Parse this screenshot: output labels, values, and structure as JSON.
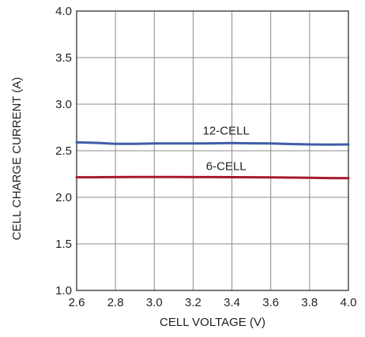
{
  "chart_data": {
    "type": "line",
    "xlabel": "CELL VOLTAGE (V)",
    "ylabel": "CELL CHARGE CURRENT (A)",
    "xlim": [
      2.6,
      4.0
    ],
    "ylim": [
      1.0,
      4.0
    ],
    "xticks": [
      "2.6",
      "2.8",
      "3.0",
      "3.2",
      "3.4",
      "3.6",
      "3.8",
      "4.0"
    ],
    "yticks": [
      "1.0",
      "1.5",
      "2.0",
      "2.5",
      "3.0",
      "3.5",
      "4.0"
    ],
    "grid": true,
    "legend": "none",
    "series": [
      {
        "name": "12-CELL",
        "color": "#3f5da8",
        "x": [
          2.6,
          2.7,
          2.8,
          2.9,
          3.0,
          3.1,
          3.2,
          3.3,
          3.4,
          3.5,
          3.6,
          3.7,
          3.8,
          3.9,
          4.0
        ],
        "y": [
          2.59,
          2.585,
          2.575,
          2.575,
          2.578,
          2.578,
          2.578,
          2.58,
          2.582,
          2.58,
          2.578,
          2.572,
          2.568,
          2.566,
          2.568
        ]
      },
      {
        "name": "6-CELL",
        "color": "#a6192e",
        "x": [
          2.6,
          2.7,
          2.8,
          2.9,
          3.0,
          3.1,
          3.2,
          3.3,
          3.4,
          3.5,
          3.6,
          3.7,
          3.8,
          3.9,
          4.0
        ],
        "y": [
          2.215,
          2.215,
          2.217,
          2.218,
          2.218,
          2.218,
          2.217,
          2.217,
          2.216,
          2.215,
          2.214,
          2.212,
          2.21,
          2.207,
          2.205
        ]
      }
    ]
  }
}
